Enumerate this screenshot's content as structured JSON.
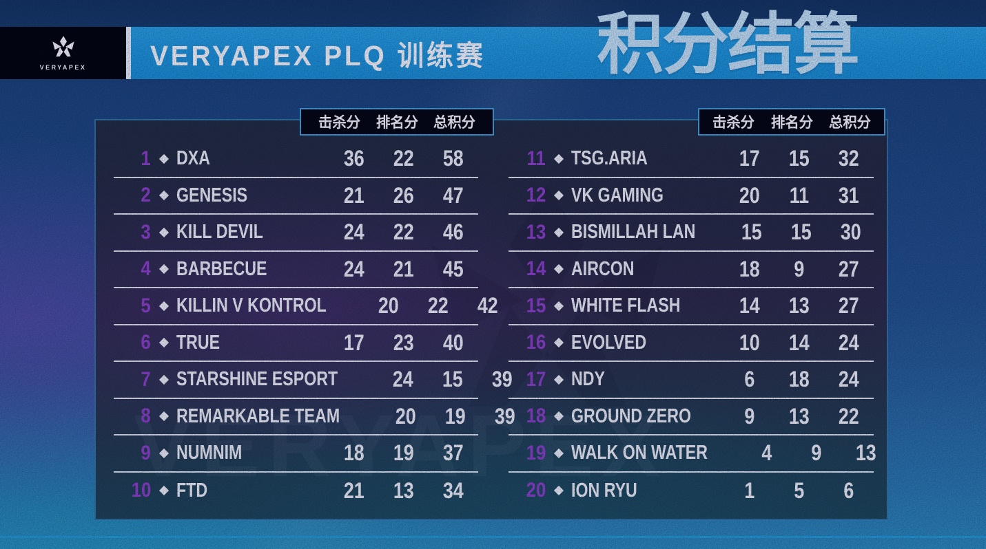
{
  "header": {
    "logo_caption": "VERYAPEX",
    "event_title": "VERYAPEX PLQ 训练赛",
    "page_title": "积分结算"
  },
  "table_headers": {
    "kills": "击杀分",
    "placement": "排名分",
    "total": "总积分"
  },
  "colors": {
    "accent_blue": "#24a3dc",
    "rank_purple": "#9143c9",
    "header_border": "#3fa9e1",
    "title_light_blue": "#c9e8f7"
  },
  "watermark": "VERYAPEX",
  "standings": {
    "left": [
      {
        "rank": "1",
        "team": "DXA",
        "kills": "36",
        "placement": "22",
        "total": "58"
      },
      {
        "rank": "2",
        "team": "GENESIS",
        "kills": "21",
        "placement": "26",
        "total": "47"
      },
      {
        "rank": "3",
        "team": "KILL DEVIL",
        "kills": "24",
        "placement": "22",
        "total": "46"
      },
      {
        "rank": "4",
        "team": "BARBECUE",
        "kills": "24",
        "placement": "21",
        "total": "45"
      },
      {
        "rank": "5",
        "team": "KILLIN V KONTROL",
        "kills": "20",
        "placement": "22",
        "total": "42"
      },
      {
        "rank": "6",
        "team": "TRUE",
        "kills": "17",
        "placement": "23",
        "total": "40"
      },
      {
        "rank": "7",
        "team": "STARSHINE ESPORT",
        "kills": "24",
        "placement": "15",
        "total": "39"
      },
      {
        "rank": "8",
        "team": "REMARKABLE TEAM",
        "kills": "20",
        "placement": "19",
        "total": "39"
      },
      {
        "rank": "9",
        "team": "NUMNIM",
        "kills": "18",
        "placement": "19",
        "total": "37"
      },
      {
        "rank": "10",
        "team": "FTD",
        "kills": "21",
        "placement": "13",
        "total": "34"
      }
    ],
    "right": [
      {
        "rank": "11",
        "team": "TSG.ARIA",
        "kills": "17",
        "placement": "15",
        "total": "32"
      },
      {
        "rank": "12",
        "team": "VK GAMING",
        "kills": "20",
        "placement": "11",
        "total": "31"
      },
      {
        "rank": "13",
        "team": "BISMILLAH LAN",
        "kills": "15",
        "placement": "15",
        "total": "30"
      },
      {
        "rank": "14",
        "team": "AIRCON",
        "kills": "18",
        "placement": "9",
        "total": "27"
      },
      {
        "rank": "15",
        "team": "WHITE FLASH",
        "kills": "14",
        "placement": "13",
        "total": "27"
      },
      {
        "rank": "16",
        "team": "EVOLVED",
        "kills": "10",
        "placement": "14",
        "total": "24"
      },
      {
        "rank": "17",
        "team": "NDY",
        "kills": "6",
        "placement": "18",
        "total": "24"
      },
      {
        "rank": "18",
        "team": "GROUND ZERO",
        "kills": "9",
        "placement": "13",
        "total": "22"
      },
      {
        "rank": "19",
        "team": "WALK ON WATER",
        "kills": "4",
        "placement": "9",
        "total": "13"
      },
      {
        "rank": "20",
        "team": "ION RYU",
        "kills": "1",
        "placement": "5",
        "total": "6"
      }
    ]
  }
}
